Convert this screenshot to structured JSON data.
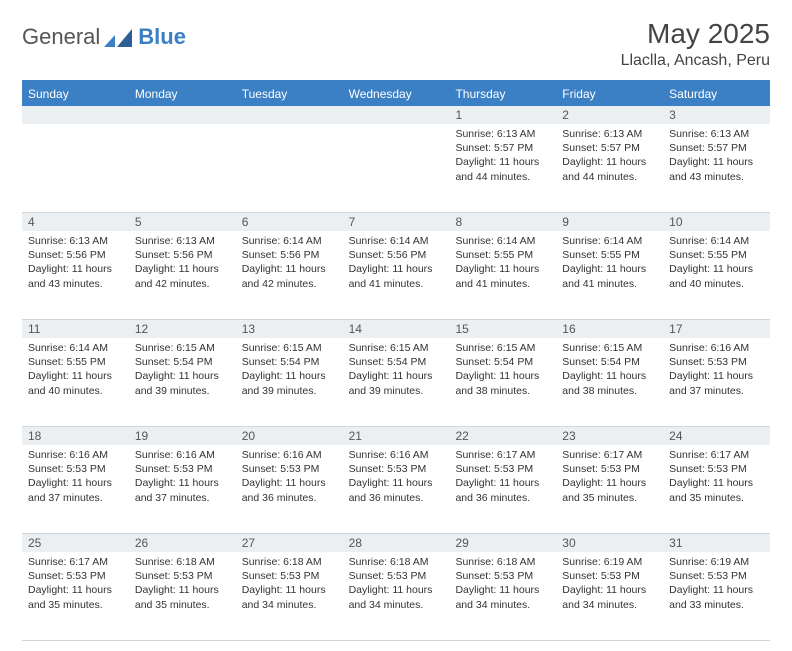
{
  "logo": {
    "word1": "General",
    "word2": "Blue"
  },
  "header": {
    "title": "May 2025",
    "location": "Llaclla, Ancash, Peru"
  },
  "colors": {
    "accent": "#3b7fc4",
    "headerText": "#ffffff",
    "dayStripe": "#eceff1",
    "border": "#cfd6dc",
    "text": "#333333",
    "titleText": "#444444"
  },
  "daysOfWeek": [
    "Sunday",
    "Monday",
    "Tuesday",
    "Wednesday",
    "Thursday",
    "Friday",
    "Saturday"
  ],
  "weeks": [
    [
      {
        "n": "",
        "sunrise": "",
        "sunset": "",
        "daylight": ""
      },
      {
        "n": "",
        "sunrise": "",
        "sunset": "",
        "daylight": ""
      },
      {
        "n": "",
        "sunrise": "",
        "sunset": "",
        "daylight": ""
      },
      {
        "n": "",
        "sunrise": "",
        "sunset": "",
        "daylight": ""
      },
      {
        "n": "1",
        "sunrise": "Sunrise: 6:13 AM",
        "sunset": "Sunset: 5:57 PM",
        "daylight": "Daylight: 11 hours and 44 minutes."
      },
      {
        "n": "2",
        "sunrise": "Sunrise: 6:13 AM",
        "sunset": "Sunset: 5:57 PM",
        "daylight": "Daylight: 11 hours and 44 minutes."
      },
      {
        "n": "3",
        "sunrise": "Sunrise: 6:13 AM",
        "sunset": "Sunset: 5:57 PM",
        "daylight": "Daylight: 11 hours and 43 minutes."
      }
    ],
    [
      {
        "n": "4",
        "sunrise": "Sunrise: 6:13 AM",
        "sunset": "Sunset: 5:56 PM",
        "daylight": "Daylight: 11 hours and 43 minutes."
      },
      {
        "n": "5",
        "sunrise": "Sunrise: 6:13 AM",
        "sunset": "Sunset: 5:56 PM",
        "daylight": "Daylight: 11 hours and 42 minutes."
      },
      {
        "n": "6",
        "sunrise": "Sunrise: 6:14 AM",
        "sunset": "Sunset: 5:56 PM",
        "daylight": "Daylight: 11 hours and 42 minutes."
      },
      {
        "n": "7",
        "sunrise": "Sunrise: 6:14 AM",
        "sunset": "Sunset: 5:56 PM",
        "daylight": "Daylight: 11 hours and 41 minutes."
      },
      {
        "n": "8",
        "sunrise": "Sunrise: 6:14 AM",
        "sunset": "Sunset: 5:55 PM",
        "daylight": "Daylight: 11 hours and 41 minutes."
      },
      {
        "n": "9",
        "sunrise": "Sunrise: 6:14 AM",
        "sunset": "Sunset: 5:55 PM",
        "daylight": "Daylight: 11 hours and 41 minutes."
      },
      {
        "n": "10",
        "sunrise": "Sunrise: 6:14 AM",
        "sunset": "Sunset: 5:55 PM",
        "daylight": "Daylight: 11 hours and 40 minutes."
      }
    ],
    [
      {
        "n": "11",
        "sunrise": "Sunrise: 6:14 AM",
        "sunset": "Sunset: 5:55 PM",
        "daylight": "Daylight: 11 hours and 40 minutes."
      },
      {
        "n": "12",
        "sunrise": "Sunrise: 6:15 AM",
        "sunset": "Sunset: 5:54 PM",
        "daylight": "Daylight: 11 hours and 39 minutes."
      },
      {
        "n": "13",
        "sunrise": "Sunrise: 6:15 AM",
        "sunset": "Sunset: 5:54 PM",
        "daylight": "Daylight: 11 hours and 39 minutes."
      },
      {
        "n": "14",
        "sunrise": "Sunrise: 6:15 AM",
        "sunset": "Sunset: 5:54 PM",
        "daylight": "Daylight: 11 hours and 39 minutes."
      },
      {
        "n": "15",
        "sunrise": "Sunrise: 6:15 AM",
        "sunset": "Sunset: 5:54 PM",
        "daylight": "Daylight: 11 hours and 38 minutes."
      },
      {
        "n": "16",
        "sunrise": "Sunrise: 6:15 AM",
        "sunset": "Sunset: 5:54 PM",
        "daylight": "Daylight: 11 hours and 38 minutes."
      },
      {
        "n": "17",
        "sunrise": "Sunrise: 6:16 AM",
        "sunset": "Sunset: 5:53 PM",
        "daylight": "Daylight: 11 hours and 37 minutes."
      }
    ],
    [
      {
        "n": "18",
        "sunrise": "Sunrise: 6:16 AM",
        "sunset": "Sunset: 5:53 PM",
        "daylight": "Daylight: 11 hours and 37 minutes."
      },
      {
        "n": "19",
        "sunrise": "Sunrise: 6:16 AM",
        "sunset": "Sunset: 5:53 PM",
        "daylight": "Daylight: 11 hours and 37 minutes."
      },
      {
        "n": "20",
        "sunrise": "Sunrise: 6:16 AM",
        "sunset": "Sunset: 5:53 PM",
        "daylight": "Daylight: 11 hours and 36 minutes."
      },
      {
        "n": "21",
        "sunrise": "Sunrise: 6:16 AM",
        "sunset": "Sunset: 5:53 PM",
        "daylight": "Daylight: 11 hours and 36 minutes."
      },
      {
        "n": "22",
        "sunrise": "Sunrise: 6:17 AM",
        "sunset": "Sunset: 5:53 PM",
        "daylight": "Daylight: 11 hours and 36 minutes."
      },
      {
        "n": "23",
        "sunrise": "Sunrise: 6:17 AM",
        "sunset": "Sunset: 5:53 PM",
        "daylight": "Daylight: 11 hours and 35 minutes."
      },
      {
        "n": "24",
        "sunrise": "Sunrise: 6:17 AM",
        "sunset": "Sunset: 5:53 PM",
        "daylight": "Daylight: 11 hours and 35 minutes."
      }
    ],
    [
      {
        "n": "25",
        "sunrise": "Sunrise: 6:17 AM",
        "sunset": "Sunset: 5:53 PM",
        "daylight": "Daylight: 11 hours and 35 minutes."
      },
      {
        "n": "26",
        "sunrise": "Sunrise: 6:18 AM",
        "sunset": "Sunset: 5:53 PM",
        "daylight": "Daylight: 11 hours and 35 minutes."
      },
      {
        "n": "27",
        "sunrise": "Sunrise: 6:18 AM",
        "sunset": "Sunset: 5:53 PM",
        "daylight": "Daylight: 11 hours and 34 minutes."
      },
      {
        "n": "28",
        "sunrise": "Sunrise: 6:18 AM",
        "sunset": "Sunset: 5:53 PM",
        "daylight": "Daylight: 11 hours and 34 minutes."
      },
      {
        "n": "29",
        "sunrise": "Sunrise: 6:18 AM",
        "sunset": "Sunset: 5:53 PM",
        "daylight": "Daylight: 11 hours and 34 minutes."
      },
      {
        "n": "30",
        "sunrise": "Sunrise: 6:19 AM",
        "sunset": "Sunset: 5:53 PM",
        "daylight": "Daylight: 11 hours and 34 minutes."
      },
      {
        "n": "31",
        "sunrise": "Sunrise: 6:19 AM",
        "sunset": "Sunset: 5:53 PM",
        "daylight": "Daylight: 11 hours and 33 minutes."
      }
    ]
  ]
}
